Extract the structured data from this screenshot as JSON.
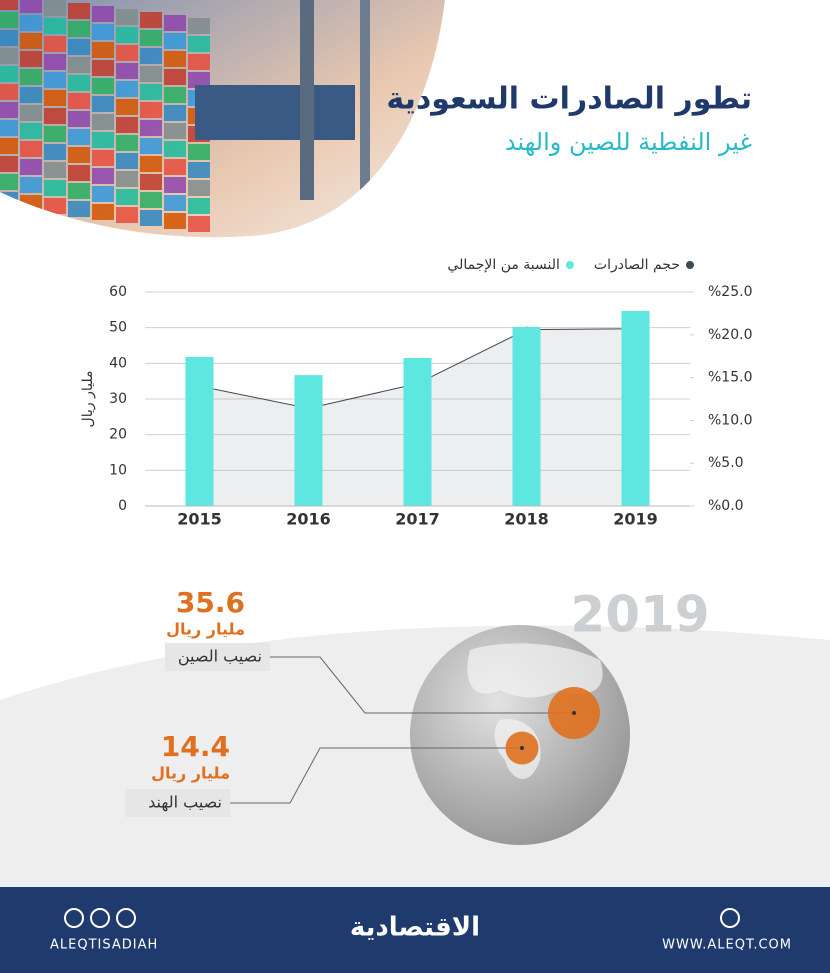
{
  "header": {
    "title": "تطور الصادرات السعودية",
    "subtitle": "غير النفطية للصين والهند"
  },
  "chart_data": {
    "type": "bar",
    "y_label": "مليار ريال",
    "categories": [
      "2015",
      "2016",
      "2017",
      "2018",
      "2019"
    ],
    "series": [
      {
        "name": "حجم الصادرات",
        "color": "#3d4954",
        "type": "line",
        "axis": "y2",
        "values": [
          14.0,
          11.4,
          14.3,
          20.6,
          20.7
        ]
      },
      {
        "name": "النسبة من الإجمالي",
        "color": "#5ee6e0",
        "type": "bar",
        "values": [
          41.8,
          36.7,
          41.5,
          50.2,
          54.7
        ]
      }
    ],
    "ylim": [
      0,
      60
    ],
    "yticks": [
      0,
      10,
      20,
      30,
      40,
      50,
      60
    ],
    "y2lim": [
      0,
      25
    ],
    "y2ticks": [
      {
        "value": 0,
        "label": "%0.0"
      },
      {
        "value": 5,
        "label": "%5.0"
      },
      {
        "value": 10,
        "label": "%10.0"
      },
      {
        "value": 15,
        "label": "%15.0"
      },
      {
        "value": 20,
        "label": "%20.0"
      },
      {
        "value": 25,
        "label": "%25.0"
      }
    ],
    "grid": true
  },
  "highlight": {
    "year": "2019",
    "items": [
      {
        "value": 35.6,
        "unit": "مليار ريال",
        "label": "نصيب الصين",
        "color": "#e0701f"
      },
      {
        "value": 14.4,
        "unit": "مليار ريال",
        "label": "نصيب الهند",
        "color": "#e0701f"
      }
    ]
  },
  "footer": {
    "social": "ALEQTISADIAH",
    "brand": "الاقتصادية",
    "website": "WWW.ALEQT.COM"
  }
}
